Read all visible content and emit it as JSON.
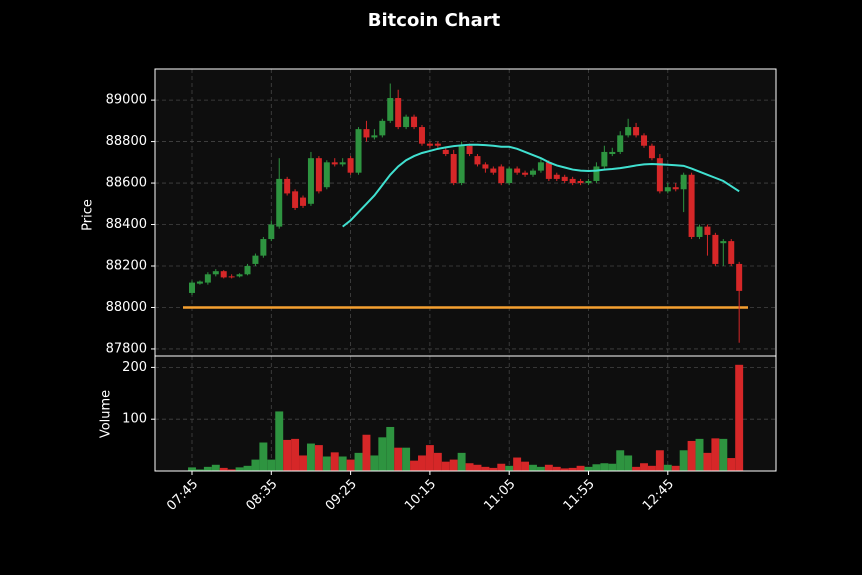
{
  "chart_data": [
    {
      "type": "candlestick",
      "title": "Bitcoin Chart",
      "ylabel": "Price",
      "categories": [
        "07:45",
        null,
        null,
        null,
        null,
        null,
        null,
        null,
        null,
        null,
        "08:35",
        null,
        null,
        null,
        null,
        null,
        null,
        null,
        null,
        null,
        "09:25",
        null,
        null,
        null,
        null,
        null,
        null,
        null,
        null,
        null,
        "10:15",
        null,
        null,
        null,
        null,
        null,
        null,
        null,
        null,
        null,
        "11:05",
        null,
        null,
        null,
        null,
        null,
        null,
        null,
        null,
        null,
        "11:55",
        null,
        null,
        null,
        null,
        null,
        null,
        null,
        null,
        null,
        "12:45",
        null,
        null,
        null,
        null,
        null,
        null,
        null,
        null,
        null
      ],
      "open": [
        88070,
        88115,
        88120,
        88160,
        88175,
        88150,
        88150,
        88160,
        88210,
        88250,
        88330,
        88390,
        88620,
        88560,
        88530,
        88500,
        88720,
        88580,
        88700,
        88690,
        88720,
        88650,
        88860,
        88820,
        88830,
        88900,
        89010,
        88870,
        88920,
        88870,
        88790,
        88790,
        88760,
        88740,
        88600,
        88780,
        88730,
        88690,
        88670,
        88680,
        88600,
        88670,
        88650,
        88640,
        88660,
        88700,
        88640,
        88630,
        88620,
        88610,
        88600,
        88610,
        88680,
        88740,
        88750,
        88830,
        88870,
        88830,
        88780,
        88720,
        88560,
        88580,
        88570,
        88640,
        88340,
        88390,
        88350,
        88310,
        88320,
        88210
      ],
      "high": [
        88130,
        88130,
        88170,
        88185,
        88180,
        88160,
        88165,
        88210,
        88260,
        88340,
        88420,
        88720,
        88630,
        88570,
        88540,
        88750,
        88730,
        88710,
        88720,
        88720,
        88730,
        88870,
        88900,
        88860,
        88910,
        89080,
        89050,
        88930,
        88930,
        88880,
        88800,
        88800,
        88770,
        88760,
        88800,
        88790,
        88740,
        88700,
        88680,
        88690,
        88680,
        88680,
        88660,
        88670,
        88720,
        88710,
        88650,
        88640,
        88630,
        88620,
        88620,
        88700,
        88780,
        88770,
        88850,
        88910,
        88890,
        88840,
        88790,
        88740,
        88600,
        88600,
        88650,
        88650,
        88400,
        88400,
        88360,
        88330,
        88330,
        88220
      ],
      "low": [
        88060,
        88110,
        88110,
        88150,
        88140,
        88140,
        88145,
        88155,
        88200,
        88240,
        88320,
        88380,
        88540,
        88470,
        88480,
        88490,
        88550,
        88570,
        88680,
        88680,
        88640,
        88640,
        88800,
        88810,
        88820,
        88890,
        88860,
        88860,
        88860,
        88780,
        88770,
        88770,
        88730,
        88590,
        88590,
        88730,
        88680,
        88650,
        88640,
        88590,
        88590,
        88640,
        88630,
        88630,
        88650,
        88610,
        88610,
        88600,
        88590,
        88590,
        88590,
        88600,
        88670,
        88730,
        88740,
        88820,
        88820,
        88770,
        88710,
        88550,
        88550,
        88560,
        88460,
        88330,
        88330,
        88250,
        88200,
        88200,
        88200,
        87830
      ],
      "close": [
        88120,
        88125,
        88160,
        88175,
        88145,
        88145,
        88160,
        88200,
        88250,
        88330,
        88400,
        88620,
        88550,
        88480,
        88490,
        88720,
        88560,
        88700,
        88690,
        88700,
        88650,
        88860,
        88820,
        88830,
        88900,
        89010,
        88870,
        88920,
        88870,
        88790,
        88780,
        88780,
        88740,
        88600,
        88780,
        88740,
        88690,
        88670,
        88650,
        88600,
        88670,
        88650,
        88640,
        88660,
        88700,
        88620,
        88620,
        88610,
        88600,
        88600,
        88610,
        88680,
        88750,
        88750,
        88830,
        88870,
        88830,
        88780,
        88720,
        88560,
        88580,
        88570,
        88640,
        88340,
        88390,
        88350,
        88210,
        88320,
        88210,
        88080
      ],
      "up_color": "#2e9440",
      "down_color": "#d62728",
      "overlays": [
        {
          "color": "#40e0d0",
          "values": [
            null,
            null,
            null,
            null,
            null,
            null,
            null,
            null,
            null,
            null,
            null,
            null,
            null,
            null,
            null,
            null,
            null,
            null,
            null,
            88390,
            88420,
            88460,
            88500,
            88540,
            88590,
            88640,
            88680,
            88710,
            88730,
            88745,
            88755,
            88765,
            88772,
            88778,
            88782,
            88785,
            88785,
            88783,
            88780,
            88775,
            88775,
            88765,
            88750,
            88735,
            88720,
            88700,
            88685,
            88675,
            88665,
            88660,
            88658,
            88660,
            88665,
            88668,
            88672,
            88678,
            88685,
            88690,
            88692,
            88690,
            88688,
            88686,
            88683,
            88670,
            88655,
            88640,
            88625,
            88610,
            88585,
            88560
          ]
        }
      ],
      "hlines": [
        {
          "value": 88000,
          "color": "#f5a030"
        }
      ],
      "ylim": [
        87766,
        89150
      ],
      "yticks": [
        87800,
        88000,
        88200,
        88400,
        88600,
        88800,
        89000
      ],
      "grid": true
    },
    {
      "type": "bar",
      "ylabel": "Volume",
      "values": [
        7,
        3,
        8,
        12,
        6,
        3,
        7,
        10,
        22,
        55,
        22,
        115,
        60,
        62,
        30,
        53,
        50,
        28,
        36,
        28,
        22,
        35,
        70,
        30,
        65,
        85,
        45,
        45,
        20,
        30,
        50,
        35,
        18,
        22,
        35,
        15,
        12,
        8,
        6,
        14,
        10,
        26,
        18,
        12,
        8,
        12,
        8,
        5,
        6,
        10,
        8,
        13,
        15,
        14,
        40,
        30,
        8,
        15,
        10,
        40,
        12,
        10,
        40,
        58,
        62,
        35,
        63,
        62,
        25,
        205
      ],
      "ylim": [
        0,
        222
      ],
      "yticks": [
        100,
        200
      ],
      "grid": true
    }
  ]
}
